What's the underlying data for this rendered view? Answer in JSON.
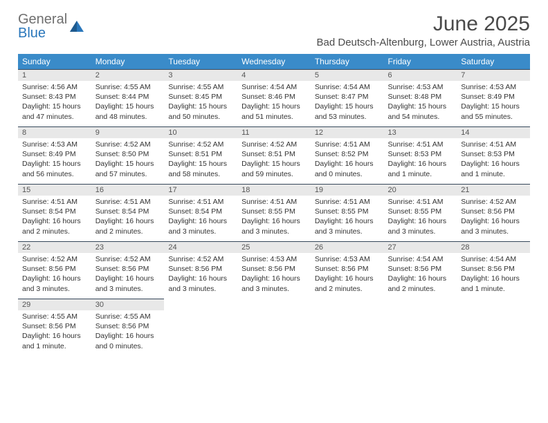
{
  "brand": {
    "word1": "General",
    "word2": "Blue"
  },
  "title": "June 2025",
  "subtitle": "Bad Deutsch-Altenburg, Lower Austria, Austria",
  "colors": {
    "header_bg": "#3a8bc9",
    "header_text": "#ffffff",
    "daynum_bg": "#e8e8e8",
    "daynum_text": "#555555",
    "body_text": "#333333",
    "rule": "#35475a",
    "page_bg": "#ffffff",
    "logo_gray": "#6f6f6f",
    "logo_blue": "#2a77bb"
  },
  "weekdays": [
    "Sunday",
    "Monday",
    "Tuesday",
    "Wednesday",
    "Thursday",
    "Friday",
    "Saturday"
  ],
  "weeks": [
    [
      {
        "n": "1",
        "sr": "Sunrise: 4:56 AM",
        "ss": "Sunset: 8:43 PM",
        "d1": "Daylight: 15 hours",
        "d2": "and 47 minutes."
      },
      {
        "n": "2",
        "sr": "Sunrise: 4:55 AM",
        "ss": "Sunset: 8:44 PM",
        "d1": "Daylight: 15 hours",
        "d2": "and 48 minutes."
      },
      {
        "n": "3",
        "sr": "Sunrise: 4:55 AM",
        "ss": "Sunset: 8:45 PM",
        "d1": "Daylight: 15 hours",
        "d2": "and 50 minutes."
      },
      {
        "n": "4",
        "sr": "Sunrise: 4:54 AM",
        "ss": "Sunset: 8:46 PM",
        "d1": "Daylight: 15 hours",
        "d2": "and 51 minutes."
      },
      {
        "n": "5",
        "sr": "Sunrise: 4:54 AM",
        "ss": "Sunset: 8:47 PM",
        "d1": "Daylight: 15 hours",
        "d2": "and 53 minutes."
      },
      {
        "n": "6",
        "sr": "Sunrise: 4:53 AM",
        "ss": "Sunset: 8:48 PM",
        "d1": "Daylight: 15 hours",
        "d2": "and 54 minutes."
      },
      {
        "n": "7",
        "sr": "Sunrise: 4:53 AM",
        "ss": "Sunset: 8:49 PM",
        "d1": "Daylight: 15 hours",
        "d2": "and 55 minutes."
      }
    ],
    [
      {
        "n": "8",
        "sr": "Sunrise: 4:53 AM",
        "ss": "Sunset: 8:49 PM",
        "d1": "Daylight: 15 hours",
        "d2": "and 56 minutes."
      },
      {
        "n": "9",
        "sr": "Sunrise: 4:52 AM",
        "ss": "Sunset: 8:50 PM",
        "d1": "Daylight: 15 hours",
        "d2": "and 57 minutes."
      },
      {
        "n": "10",
        "sr": "Sunrise: 4:52 AM",
        "ss": "Sunset: 8:51 PM",
        "d1": "Daylight: 15 hours",
        "d2": "and 58 minutes."
      },
      {
        "n": "11",
        "sr": "Sunrise: 4:52 AM",
        "ss": "Sunset: 8:51 PM",
        "d1": "Daylight: 15 hours",
        "d2": "and 59 minutes."
      },
      {
        "n": "12",
        "sr": "Sunrise: 4:51 AM",
        "ss": "Sunset: 8:52 PM",
        "d1": "Daylight: 16 hours",
        "d2": "and 0 minutes."
      },
      {
        "n": "13",
        "sr": "Sunrise: 4:51 AM",
        "ss": "Sunset: 8:53 PM",
        "d1": "Daylight: 16 hours",
        "d2": "and 1 minute."
      },
      {
        "n": "14",
        "sr": "Sunrise: 4:51 AM",
        "ss": "Sunset: 8:53 PM",
        "d1": "Daylight: 16 hours",
        "d2": "and 1 minute."
      }
    ],
    [
      {
        "n": "15",
        "sr": "Sunrise: 4:51 AM",
        "ss": "Sunset: 8:54 PM",
        "d1": "Daylight: 16 hours",
        "d2": "and 2 minutes."
      },
      {
        "n": "16",
        "sr": "Sunrise: 4:51 AM",
        "ss": "Sunset: 8:54 PM",
        "d1": "Daylight: 16 hours",
        "d2": "and 2 minutes."
      },
      {
        "n": "17",
        "sr": "Sunrise: 4:51 AM",
        "ss": "Sunset: 8:54 PM",
        "d1": "Daylight: 16 hours",
        "d2": "and 3 minutes."
      },
      {
        "n": "18",
        "sr": "Sunrise: 4:51 AM",
        "ss": "Sunset: 8:55 PM",
        "d1": "Daylight: 16 hours",
        "d2": "and 3 minutes."
      },
      {
        "n": "19",
        "sr": "Sunrise: 4:51 AM",
        "ss": "Sunset: 8:55 PM",
        "d1": "Daylight: 16 hours",
        "d2": "and 3 minutes."
      },
      {
        "n": "20",
        "sr": "Sunrise: 4:51 AM",
        "ss": "Sunset: 8:55 PM",
        "d1": "Daylight: 16 hours",
        "d2": "and 3 minutes."
      },
      {
        "n": "21",
        "sr": "Sunrise: 4:52 AM",
        "ss": "Sunset: 8:56 PM",
        "d1": "Daylight: 16 hours",
        "d2": "and 3 minutes."
      }
    ],
    [
      {
        "n": "22",
        "sr": "Sunrise: 4:52 AM",
        "ss": "Sunset: 8:56 PM",
        "d1": "Daylight: 16 hours",
        "d2": "and 3 minutes."
      },
      {
        "n": "23",
        "sr": "Sunrise: 4:52 AM",
        "ss": "Sunset: 8:56 PM",
        "d1": "Daylight: 16 hours",
        "d2": "and 3 minutes."
      },
      {
        "n": "24",
        "sr": "Sunrise: 4:52 AM",
        "ss": "Sunset: 8:56 PM",
        "d1": "Daylight: 16 hours",
        "d2": "and 3 minutes."
      },
      {
        "n": "25",
        "sr": "Sunrise: 4:53 AM",
        "ss": "Sunset: 8:56 PM",
        "d1": "Daylight: 16 hours",
        "d2": "and 3 minutes."
      },
      {
        "n": "26",
        "sr": "Sunrise: 4:53 AM",
        "ss": "Sunset: 8:56 PM",
        "d1": "Daylight: 16 hours",
        "d2": "and 2 minutes."
      },
      {
        "n": "27",
        "sr": "Sunrise: 4:54 AM",
        "ss": "Sunset: 8:56 PM",
        "d1": "Daylight: 16 hours",
        "d2": "and 2 minutes."
      },
      {
        "n": "28",
        "sr": "Sunrise: 4:54 AM",
        "ss": "Sunset: 8:56 PM",
        "d1": "Daylight: 16 hours",
        "d2": "and 1 minute."
      }
    ],
    [
      {
        "n": "29",
        "sr": "Sunrise: 4:55 AM",
        "ss": "Sunset: 8:56 PM",
        "d1": "Daylight: 16 hours",
        "d2": "and 1 minute."
      },
      {
        "n": "30",
        "sr": "Sunrise: 4:55 AM",
        "ss": "Sunset: 8:56 PM",
        "d1": "Daylight: 16 hours",
        "d2": "and 0 minutes."
      },
      null,
      null,
      null,
      null,
      null
    ]
  ]
}
